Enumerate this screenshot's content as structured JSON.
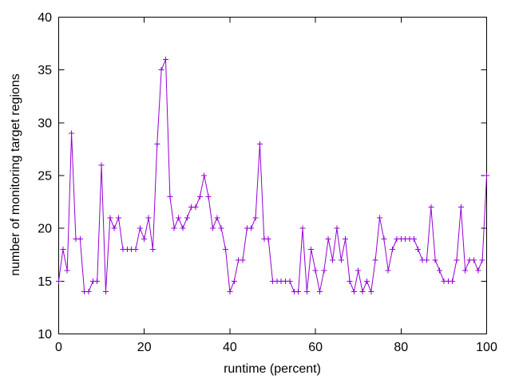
{
  "chart_data": {
    "type": "line",
    "title": "",
    "xlabel": "runtime (percent)",
    "ylabel": "number of monitoring target regions",
    "xlim": [
      0,
      100
    ],
    "ylim": [
      10,
      40
    ],
    "x_ticks": [
      0,
      20,
      40,
      60,
      80,
      100
    ],
    "y_ticks": [
      10,
      15,
      20,
      25,
      30,
      35,
      40
    ],
    "grid": false,
    "legend_position": "none",
    "marker": "plus",
    "line_color": "#9400d3",
    "background_color": "#ffffff",
    "border_color": "#000000",
    "x": [
      0,
      1,
      2,
      3,
      4,
      5,
      6,
      7,
      8,
      9,
      10,
      11,
      12,
      13,
      14,
      15,
      16,
      17,
      18,
      19,
      20,
      21,
      22,
      23,
      24,
      25,
      26,
      27,
      28,
      29,
      30,
      31,
      32,
      33,
      34,
      35,
      36,
      37,
      38,
      39,
      40,
      41,
      42,
      43,
      44,
      45,
      46,
      47,
      48,
      49,
      50,
      51,
      52,
      53,
      54,
      55,
      56,
      57,
      58,
      59,
      60,
      61,
      62,
      63,
      64,
      65,
      66,
      67,
      68,
      69,
      70,
      71,
      72,
      73,
      74,
      75,
      76,
      77,
      78,
      79,
      80,
      81,
      82,
      83,
      84,
      85,
      86,
      87,
      88,
      89,
      90,
      91,
      92,
      93,
      94,
      95,
      96,
      97,
      98,
      99,
      100
    ],
    "values": [
      15,
      18,
      16,
      29,
      19,
      19,
      14,
      14,
      15,
      15,
      26,
      14,
      21,
      20,
      21,
      18,
      18,
      18,
      18,
      20,
      19,
      21,
      18,
      28,
      35,
      36,
      23,
      20,
      21,
      20,
      21,
      22,
      22,
      23,
      25,
      23,
      20,
      21,
      20,
      18,
      14,
      15,
      17,
      17,
      20,
      20,
      21,
      28,
      19,
      19,
      15,
      15,
      15,
      15,
      15,
      14,
      14,
      20,
      14,
      18,
      16,
      14,
      16,
      19,
      17,
      20,
      17,
      19,
      15,
      14,
      16,
      14,
      15,
      14,
      17,
      21,
      19,
      16,
      18,
      19,
      19,
      19,
      19,
      19,
      18,
      17,
      17,
      22,
      17,
      16,
      15,
      15,
      15,
      17,
      22,
      16,
      17,
      17,
      16,
      17,
      25
    ]
  }
}
